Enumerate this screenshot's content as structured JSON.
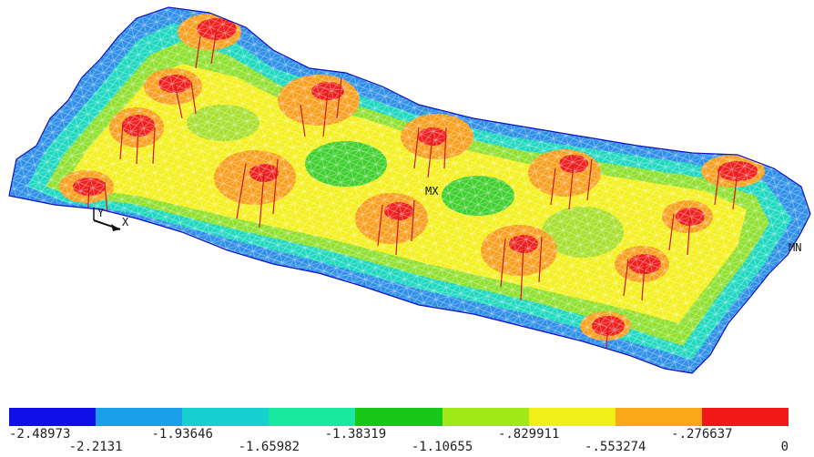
{
  "plot": {
    "labels": {
      "max_marker": "MX",
      "min_marker": "MN",
      "axis_y": "Y",
      "axis_x": "X"
    }
  },
  "legend": {
    "colors": [
      "#1010e8",
      "#1aa0e8",
      "#18d0d0",
      "#18e8a0",
      "#18c818",
      "#a0e818",
      "#f0f018",
      "#f8a818",
      "#f01818"
    ],
    "ticks": [
      "-2.48973",
      "-2.2131",
      "-1.93646",
      "-1.65982",
      "-1.38319",
      "-1.10655",
      "-.829911",
      "-.553274",
      "-.276637",
      "0"
    ]
  }
}
